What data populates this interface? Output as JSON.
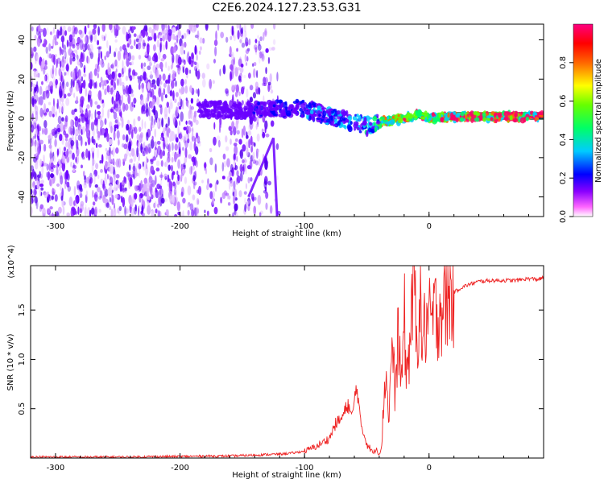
{
  "figure": {
    "title": "C2E6.2024.127.23.53.G31"
  },
  "chart_data": [
    {
      "type": "heatmap",
      "xlabel": "Height of straight line (km)",
      "ylabel": "Frequency (Hz)",
      "xlim": [
        -320,
        92
      ],
      "ylim": [
        -50,
        48
      ],
      "x_ticks": [
        -300,
        -200,
        -100,
        0
      ],
      "x_tick_labels": [
        "-300",
        "-200",
        "-100",
        "0"
      ],
      "y_ticks": [
        -40,
        -20,
        0,
        20,
        40
      ],
      "y_tick_labels": [
        "-40",
        "-20",
        "0",
        "20",
        "40"
      ],
      "colorbar": {
        "label": "Normalized spectral amplitude",
        "range": [
          0,
          1
        ],
        "ticks": [
          0.0,
          0.2,
          0.4,
          0.6,
          0.8
        ],
        "tick_labels": [
          "0.0",
          "0.2",
          "0.4",
          "0.6",
          "0.8"
        ],
        "colors": [
          "#ffffff",
          "#ff00ff",
          "#6a00ff",
          "#0000ff",
          "#00ccff",
          "#00ff66",
          "#66ff00",
          "#ffff00",
          "#ff6600",
          "#ff0000",
          "#ff0066"
        ]
      },
      "ridge": {
        "x": [
          -180,
          -160,
          -140,
          -120,
          -100,
          -80,
          -60,
          -50,
          -40,
          -30,
          -20,
          -10,
          0,
          20,
          40,
          60,
          92
        ],
        "freq": [
          5,
          4,
          4,
          5,
          5,
          1,
          -2,
          -4,
          -2,
          -1,
          0,
          2,
          0,
          1,
          1,
          1,
          1
        ]
      },
      "diagonal_streak": {
        "x": [
          -145,
          -125,
          -122
        ],
        "freq": [
          -40,
          -10,
          -50
        ]
      }
    },
    {
      "type": "line",
      "xlabel": "Height of straight line (km)",
      "ylabel": "SNR (10 * v/v)",
      "multiplier": "(x10^4)",
      "xlim": [
        -320,
        92
      ],
      "ylim": [
        0,
        1.95
      ],
      "x_ticks": [
        -300,
        -200,
        -100,
        0
      ],
      "x_tick_labels": [
        "-300",
        "-200",
        "-100",
        "0"
      ],
      "y_ticks": [
        0.5,
        1.0,
        1.5
      ],
      "y_tick_labels": [
        "0.5",
        "1.0",
        "1.5"
      ],
      "color": "#ee2222",
      "series": [
        {
          "x": [
            -320,
            -300,
            -280,
            -260,
            -240,
            -220,
            -200,
            -180,
            -160,
            -140,
            -120,
            -110,
            -100,
            -90,
            -80,
            -75,
            -70,
            -65,
            -62,
            -58,
            -55,
            -50,
            -45,
            -42,
            -40,
            -38,
            -35,
            -32,
            -30,
            -27,
            -25,
            -22,
            -20,
            -18,
            -15,
            -12,
            -10,
            -8,
            -5,
            -2,
            0,
            5,
            10,
            15,
            20,
            25,
            30,
            35,
            40,
            50,
            60,
            70,
            80,
            88,
            92
          ],
          "values": [
            0.01,
            0.01,
            0.01,
            0.01,
            0.01,
            0.015,
            0.015,
            0.02,
            0.02,
            0.03,
            0.04,
            0.05,
            0.07,
            0.12,
            0.2,
            0.35,
            0.4,
            0.55,
            0.4,
            0.75,
            0.35,
            0.15,
            0.05,
            0.1,
            0.03,
            0.15,
            0.9,
            0.4,
            1.2,
            0.6,
            1.3,
            0.7,
            1.5,
            0.8,
            1.25,
            1.9,
            1.1,
            1.6,
            1.2,
            1.4,
            1.35,
            1.45,
            1.55,
            1.62,
            1.68,
            1.72,
            1.75,
            1.77,
            1.79,
            1.8,
            1.8,
            1.8,
            1.82,
            1.81,
            1.83
          ]
        }
      ]
    }
  ]
}
